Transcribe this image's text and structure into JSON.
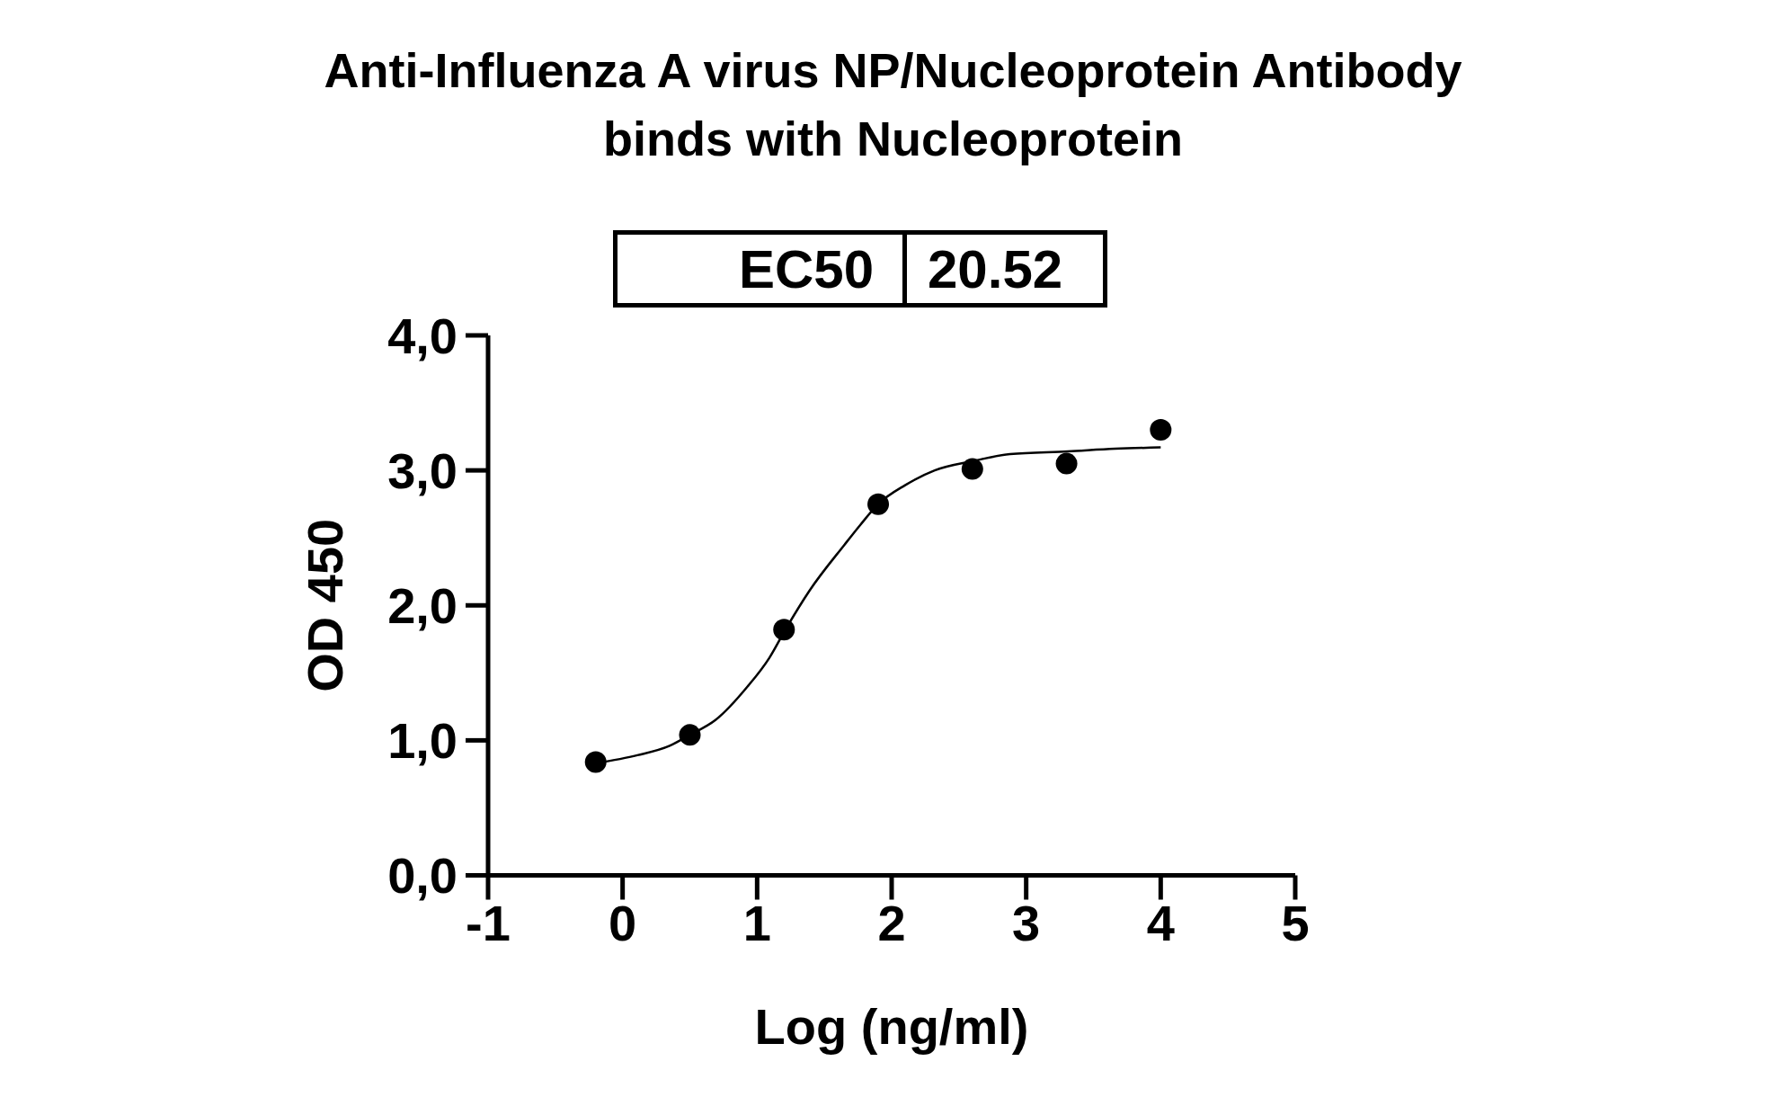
{
  "chart_data": {
    "type": "scatter",
    "title": "Anti-Influenza A virus NP/Nucleoprotein Antibody\nbinds with Nucleoprotein",
    "xlabel": "Log (ng/ml)",
    "ylabel": "OD 450",
    "annotations": [
      "EC50",
      "20.52"
    ],
    "xlim": [
      -1,
      5
    ],
    "xticks": [
      -1,
      0,
      1,
      2,
      3,
      4,
      5
    ],
    "ylim": [
      0,
      4
    ],
    "yticks": [
      {
        "value": 0,
        "label": "0,0"
      },
      {
        "value": 1,
        "label": "1,0"
      },
      {
        "value": 2,
        "label": "2,0"
      },
      {
        "value": 3,
        "label": "3,0"
      },
      {
        "value": 4,
        "label": "4,0"
      }
    ],
    "marker": "circle",
    "series": [
      {
        "color": "#000000",
        "x": [
          -0.2,
          0.5,
          1.2,
          1.9,
          2.6,
          3.3,
          4.0
        ],
        "values": [
          0.84,
          1.04,
          1.82,
          2.75,
          3.01,
          3.05,
          3.3
        ]
      },
      {
        "type": "line",
        "color": "#000000",
        "marker": "none",
        "line_style": "solid",
        "x": [
          -0.2,
          0.11,
          0.35,
          0.5,
          0.69,
          0.93,
          1.09,
          1.21,
          1.39,
          1.65,
          1.77,
          1.9,
          2.1,
          2.32,
          2.61,
          2.88,
          3.31,
          3.66,
          4.0
        ],
        "values": [
          0.83,
          0.89,
          0.96,
          1.04,
          1.15,
          1.4,
          1.61,
          1.82,
          2.11,
          2.45,
          2.6,
          2.75,
          2.89,
          3.0,
          3.07,
          3.12,
          3.14,
          3.16,
          3.17
        ]
      }
    ]
  }
}
